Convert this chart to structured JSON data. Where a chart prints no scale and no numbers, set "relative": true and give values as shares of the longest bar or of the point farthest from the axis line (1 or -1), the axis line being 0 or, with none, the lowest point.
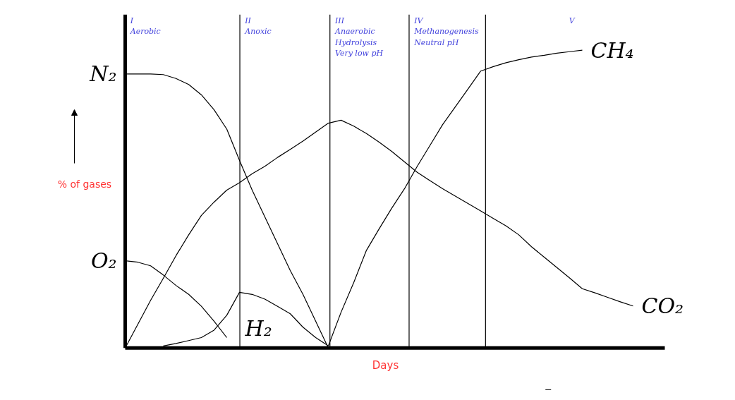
{
  "chart_data": {
    "type": "line",
    "relative": true,
    "xlabel": "Days",
    "ylabel": "% of gases",
    "tick_labels": false,
    "grid": false,
    "marker": "none",
    "line_style": "solid",
    "categories": [
      null,
      null,
      null,
      null,
      null,
      null,
      null,
      null,
      null,
      null,
      null,
      null,
      null,
      null,
      null,
      null,
      null,
      null,
      null,
      null,
      null,
      null,
      null,
      null,
      null,
      null,
      null,
      null,
      null,
      null,
      null,
      null,
      null,
      null,
      null,
      null,
      null,
      null,
      null,
      null,
      null,
      null,
      null
    ],
    "series": [
      {
        "name": "N₂",
        "color": "#000000",
        "values": [
          0.92,
          0.92,
          0.92,
          0.918,
          0.905,
          0.885,
          0.85,
          0.8,
          0.735,
          0.63,
          0.53,
          0.44,
          0.35,
          0.26,
          0.18,
          0.09,
          0,
          null,
          null,
          null,
          null,
          null,
          null,
          null,
          null,
          null,
          null,
          null,
          null,
          null,
          null,
          null,
          null,
          null,
          null,
          null,
          null,
          null,
          null,
          null,
          null,
          null,
          null
        ]
      },
      {
        "name": "O₂",
        "color": "#000000",
        "values": [
          0.293,
          0.288,
          0.276,
          0.245,
          0.21,
          0.18,
          0.14,
          0.09,
          0.035,
          null,
          null,
          null,
          null,
          null,
          null,
          null,
          null,
          null,
          null,
          null,
          null,
          null,
          null,
          null,
          null,
          null,
          null,
          null,
          null,
          null,
          null,
          null,
          null,
          null,
          null,
          null,
          null,
          null,
          null,
          null,
          null,
          null,
          null
        ]
      },
      {
        "name": "H₂",
        "color": "#000000",
        "values": [
          null,
          null,
          null,
          0.007,
          0.015,
          0.025,
          0.035,
          0.06,
          0.11,
          0.187,
          0.18,
          0.164,
          0.14,
          0.115,
          0.07,
          0.035,
          0.007,
          null,
          null,
          null,
          null,
          null,
          null,
          null,
          null,
          null,
          null,
          null,
          null,
          null,
          null,
          null,
          null,
          null,
          null,
          null,
          null,
          null,
          null,
          null,
          null,
          null,
          null
        ]
      },
      {
        "name": "CO₂",
        "color": "#000000",
        "values": [
          0,
          0.08,
          0.16,
          0.234,
          0.31,
          0.38,
          0.445,
          0.49,
          0.53,
          0.555,
          0.585,
          0.61,
          0.64,
          0.667,
          0.695,
          0.725,
          0.755,
          0.765,
          0.745,
          0.72,
          0.691,
          0.66,
          0.625,
          0.59,
          0.562,
          0.535,
          0.51,
          0.485,
          0.46,
          0.435,
          0.41,
          0.38,
          0.34,
          0.305,
          0.27,
          0.235,
          0.199,
          0.185,
          0.17,
          0.155,
          0.141,
          null,
          null
        ]
      },
      {
        "name": "CH₄",
        "color": "#000000",
        "values": [
          null,
          null,
          null,
          null,
          null,
          null,
          null,
          null,
          null,
          null,
          null,
          null,
          null,
          null,
          null,
          null,
          0.007,
          0.12,
          0.22,
          0.328,
          0.4,
          0.47,
          0.535,
          0.61,
          0.68,
          0.75,
          0.81,
          0.87,
          0.93,
          0.945,
          0.958,
          0.968,
          0.977,
          0.983,
          0.99,
          0.995,
          1,
          null,
          null,
          null,
          null,
          null,
          null
        ]
      }
    ],
    "annotations": [
      "I\nAerobic",
      "II\nAnoxic",
      "III\nAnaerobic\nHydrolysis\nVery low pH",
      "IV\nMethanogenesis\nNeutral pH",
      "V"
    ]
  }
}
